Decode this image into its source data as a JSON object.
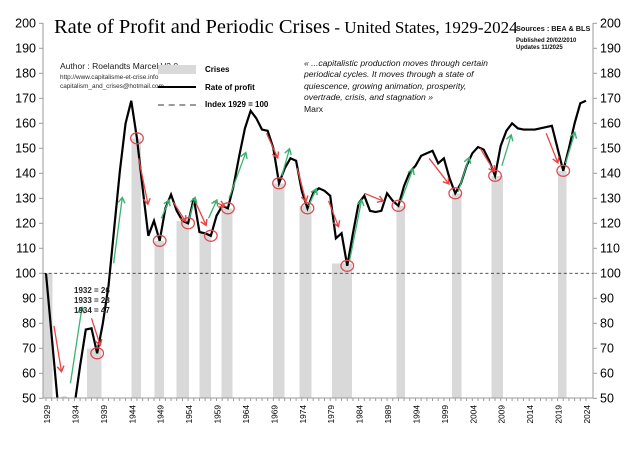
{
  "header": {
    "title_main": "Rate of Profit and Periodic Crises",
    "title_sub": " - United States, 1929-2024"
  },
  "sources": {
    "sources_line": "Sources : BEA & BLS",
    "published_line": "Published 20/02/2010",
    "updates_line": "Updates 11/2025"
  },
  "author": {
    "name_line": "Author : Roelandts Marcel V2.0",
    "website": "http://www.capitalisme-et-crise.info",
    "email": "capitalism_and_crises@hotmail.com"
  },
  "legend": {
    "items": [
      {
        "label": "Crises",
        "swatch": "gray-bar"
      },
      {
        "label": "Rate of profit",
        "swatch": "black-line"
      },
      {
        "label": "Index 1929 = 100",
        "swatch": "dashed-line"
      }
    ]
  },
  "quote": {
    "text": "« ...capitalistic production moves through certain periodical cycles. It moves through a state of quiescence, growing animation, prosperity, overtrade, crisis, and stagnation »",
    "attribution": "Marx"
  },
  "annotations": [
    "1932 = 26",
    "1933 = 28",
    "1934 = 47"
  ],
  "colors": {
    "crisis_bar": "#d9d9d9",
    "profit_line": "#000000",
    "crisis_circle": "#e0484e",
    "down_arrow": "#e64545",
    "up_arrow": "#3bb273",
    "index_line": "#3a3a3a",
    "axis": "#9b9b9b"
  },
  "chart_data": {
    "type": "line",
    "title": "Rate of Profit and Periodic Crises - United States, 1929-2024",
    "xlabel": "",
    "ylabel": "",
    "x": {
      "start": 1929,
      "end": 2024,
      "step": 1
    },
    "series": [
      {
        "name": "Rate of profit",
        "values": [
          100,
          75,
          50,
          26,
          28,
          47,
          63,
          77.5,
          78,
          68,
          80,
          95,
          118,
          141,
          160,
          169,
          154,
          134,
          115,
          121,
          113,
          126,
          131.5,
          125,
          121,
          120,
          130,
          116.5,
          116,
          115,
          123,
          127,
          126,
          135,
          147,
          158,
          165,
          162,
          157.5,
          157,
          150,
          136,
          142,
          146,
          145,
          133,
          126,
          132,
          134,
          133,
          131,
          114,
          116,
          103,
          116,
          128,
          131,
          125,
          124.5,
          125,
          132,
          129,
          127,
          135,
          140.5,
          143,
          147,
          148,
          149,
          144,
          146,
          138,
          132,
          136,
          143,
          148,
          150.5,
          149.5,
          145,
          139,
          151,
          157,
          160,
          158,
          157.5,
          157.5,
          157.5,
          158,
          158.5,
          159,
          150,
          141,
          150,
          160,
          168,
          169
        ]
      }
    ],
    "ylim": [
      50,
      200
    ],
    "ytick_step": 10,
    "xtick_label_step": 5,
    "index_baseline": 100,
    "grid": false,
    "legend_position": "top-left",
    "crises_bars": [
      [
        1928.5,
        1930.1,
        100
      ],
      [
        1936.2,
        1938.8,
        70
      ],
      [
        1944.0,
        1945.7,
        154
      ],
      [
        1948.1,
        1949.8,
        113
      ],
      [
        1952.0,
        1954.2,
        121
      ],
      [
        1956.0,
        1958.0,
        116
      ],
      [
        1959.9,
        1961.8,
        126
      ],
      [
        1968.9,
        1971.0,
        136
      ],
      [
        1973.6,
        1975.7,
        127
      ],
      [
        1979.3,
        1982.8,
        104
      ],
      [
        1990.7,
        1992.2,
        127
      ],
      [
        2000.4,
        2002.1,
        132
      ],
      [
        2007.4,
        2009.4,
        139
      ],
      [
        2019.1,
        2020.6,
        141
      ]
    ],
    "crisis_points": [
      [
        1938,
        68
      ],
      [
        1945,
        154
      ],
      [
        1949,
        113
      ],
      [
        1954,
        120
      ],
      [
        1958,
        115
      ],
      [
        1961,
        126
      ],
      [
        1970,
        136
      ],
      [
        1975,
        126
      ],
      [
        1982,
        103
      ],
      [
        1991,
        127
      ],
      [
        2001,
        132
      ],
      [
        2008,
        139
      ],
      [
        2020,
        141
      ]
    ],
    "below_axis_marker": {
      "year": 1932.2,
      "value": 50.5
    },
    "arrows_down": [
      [
        1930.4,
        79,
        1931.7,
        61
      ],
      [
        1937.0,
        82,
        1938.5,
        71.5
      ],
      [
        1945.3,
        146,
        1946.9,
        128
      ],
      [
        1951.4,
        128.5,
        1953.5,
        121
      ],
      [
        1955.3,
        128.5,
        1957.1,
        119.5
      ],
      [
        1958.4,
        128.8,
        1960.3,
        127
      ],
      [
        1967.8,
        156,
        1969.7,
        146.5
      ],
      [
        1973.2,
        142,
        1974.7,
        129
      ],
      [
        1978.7,
        129,
        1980.4,
        119
      ],
      [
        1985.0,
        132,
        1988.2,
        129
      ],
      [
        1996.4,
        146,
        1999.8,
        136
      ],
      [
        2005.4,
        150,
        2007.8,
        141
      ],
      [
        2017.0,
        156,
        2019.0,
        144.5
      ]
    ],
    "arrows_up": [
      [
        1933.3,
        56,
        1935.3,
        86
      ],
      [
        1940.9,
        104,
        1942.4,
        130
      ],
      [
        1949.3,
        122,
        1950.6,
        129
      ],
      [
        1954.2,
        122,
        1955.2,
        130
      ],
      [
        1957.6,
        122,
        1959.0,
        129
      ],
      [
        1961.2,
        130,
        1964.1,
        148
      ],
      [
        1970.5,
        139,
        1971.8,
        149.5
      ],
      [
        1975.2,
        127,
        1976.5,
        133.5
      ],
      [
        1982.4,
        105,
        1984.5,
        129
      ],
      [
        1991.4,
        128.5,
        1993.5,
        141.5
      ],
      [
        2001.5,
        132.5,
        2003.4,
        146
      ],
      [
        2009.2,
        143,
        2010.8,
        155
      ],
      [
        2020.4,
        144,
        2022.0,
        156
      ]
    ]
  }
}
